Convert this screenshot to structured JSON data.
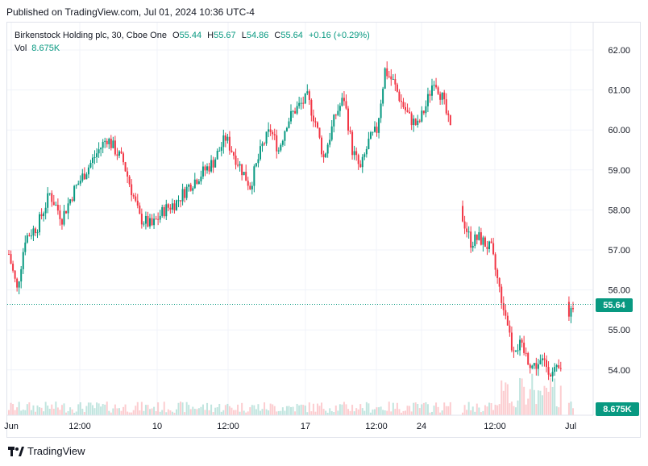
{
  "published": "Published on TradingView.com, Jul 01, 2024 10:36 UTC-4",
  "legend": {
    "symbol": "Birkenstock Holding plc, 30, Cboe One",
    "o_label": "O",
    "o": "55.44",
    "h_label": "H",
    "h": "55.67",
    "l_label": "L",
    "l": "54.86",
    "c_label": "C",
    "c": "55.64",
    "change": "+0.16 (+0.29%)",
    "vol_label": "Vol",
    "vol": "8.675K"
  },
  "price_tag": "55.64",
  "volume_tag": "8.675K",
  "footer": {
    "brand": "TradingView",
    "logo_icon": "tradingview-logo-icon"
  },
  "colors": {
    "up": "#089981",
    "down": "#f23645",
    "grid": "#f0f3fa",
    "text": "#131722",
    "tag": "#089981"
  },
  "chart_data": {
    "type": "candlestick",
    "interval": "30",
    "y_ticks": [
      "54.00",
      "55.00",
      "56.00",
      "57.00",
      "58.00",
      "59.00",
      "60.00",
      "61.00",
      "62.00"
    ],
    "x_ticks": [
      "Jun",
      "12:00",
      "10",
      "12:00",
      "17",
      "12:00",
      "24",
      "12:00",
      "Jul"
    ],
    "ylim": [
      53.6,
      62.3
    ],
    "last_price": 55.64,
    "grid": true,
    "path_points": [
      [
        0,
        56.9
      ],
      [
        4,
        56.0
      ],
      [
        8,
        57.3
      ],
      [
        14,
        57.6
      ],
      [
        20,
        58.4
      ],
      [
        26,
        57.8
      ],
      [
        32,
        58.5
      ],
      [
        38,
        59.0
      ],
      [
        44,
        59.5
      ],
      [
        48,
        59.8
      ],
      [
        52,
        59.5
      ],
      [
        56,
        59.2
      ],
      [
        60,
        58.5
      ],
      [
        64,
        57.8
      ],
      [
        70,
        57.6
      ],
      [
        76,
        58.0
      ],
      [
        82,
        58.2
      ],
      [
        88,
        58.6
      ],
      [
        94,
        58.9
      ],
      [
        100,
        59.2
      ],
      [
        106,
        59.8
      ],
      [
        110,
        59.4
      ],
      [
        114,
        59.0
      ],
      [
        118,
        58.6
      ],
      [
        124,
        59.6
      ],
      [
        128,
        60.0
      ],
      [
        132,
        59.5
      ],
      [
        136,
        60.2
      ],
      [
        140,
        60.5
      ],
      [
        146,
        60.8
      ],
      [
        150,
        60.2
      ],
      [
        154,
        59.3
      ],
      [
        160,
        60.4
      ],
      [
        164,
        60.8
      ],
      [
        168,
        59.5
      ],
      [
        172,
        59.0
      ],
      [
        176,
        59.7
      ],
      [
        180,
        60.0
      ],
      [
        184,
        61.5
      ],
      [
        188,
        61.2
      ],
      [
        192,
        60.7
      ],
      [
        196,
        60.3
      ],
      [
        200,
        60.1
      ],
      [
        204,
        60.6
      ],
      [
        208,
        61.3
      ],
      [
        212,
        60.8
      ],
      [
        216,
        60.0
      ],
      [
        222,
        57.8
      ],
      [
        226,
        57.2
      ],
      [
        230,
        57.3
      ],
      [
        236,
        57.0
      ],
      [
        240,
        56.0
      ],
      [
        244,
        55.2
      ],
      [
        246,
        54.6
      ],
      [
        250,
        54.6
      ],
      [
        256,
        54.1
      ],
      [
        262,
        54.2
      ],
      [
        266,
        53.9
      ],
      [
        270,
        54.0
      ],
      [
        274,
        55.4
      ],
      [
        276,
        55.64
      ]
    ]
  }
}
